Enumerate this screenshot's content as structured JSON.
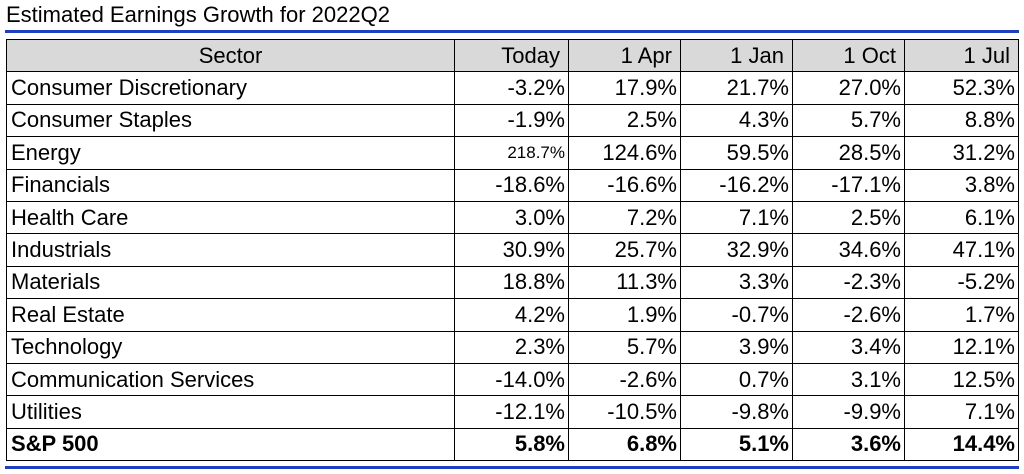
{
  "title": "Estimated Earnings Growth for 2022Q2",
  "accent_color": "#1f3fbf",
  "header": [
    "Sector",
    "Today",
    "1 Apr",
    "1 Jan",
    "1 Oct",
    "1 Jul"
  ],
  "rows": [
    {
      "sector": "Consumer Discretionary",
      "values": [
        "-3.2%",
        "17.9%",
        "21.7%",
        "27.0%",
        "52.3%"
      ]
    },
    {
      "sector": "Consumer Staples",
      "values": [
        "-1.9%",
        "2.5%",
        "4.3%",
        "5.7%",
        "8.8%"
      ]
    },
    {
      "sector": "Energy",
      "values": [
        "218.7%",
        "124.6%",
        "59.5%",
        "28.5%",
        "31.2%"
      ]
    },
    {
      "sector": "Financials",
      "values": [
        "-18.6%",
        "-16.6%",
        "-16.2%",
        "-17.1%",
        "3.8%"
      ]
    },
    {
      "sector": "Health Care",
      "values": [
        "3.0%",
        "7.2%",
        "7.1%",
        "2.5%",
        "6.1%"
      ]
    },
    {
      "sector": "Industrials",
      "values": [
        "30.9%",
        "25.7%",
        "32.9%",
        "34.6%",
        "47.1%"
      ]
    },
    {
      "sector": "Materials",
      "values": [
        "18.8%",
        "11.3%",
        "3.3%",
        "-2.3%",
        "-5.2%"
      ]
    },
    {
      "sector": "Real Estate",
      "values": [
        "4.2%",
        "1.9%",
        "-0.7%",
        "-2.6%",
        "1.7%"
      ]
    },
    {
      "sector": "Technology",
      "values": [
        "2.3%",
        "5.7%",
        "3.9%",
        "3.4%",
        "12.1%"
      ]
    },
    {
      "sector": "Communication Services",
      "values": [
        "-14.0%",
        "-2.6%",
        "0.7%",
        "3.1%",
        "12.5%"
      ]
    },
    {
      "sector": "Utilities",
      "values": [
        "-12.1%",
        "-10.5%",
        "-9.8%",
        "-9.9%",
        "7.1%"
      ]
    }
  ],
  "total": {
    "sector": "S&P 500",
    "values": [
      "5.8%",
      "6.8%",
      "5.1%",
      "3.6%",
      "14.4%"
    ]
  }
}
